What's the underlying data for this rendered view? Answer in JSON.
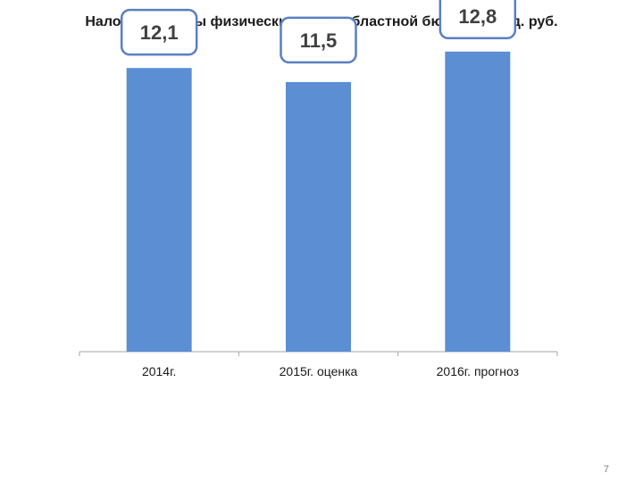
{
  "slide": {
    "page_number": "7"
  },
  "chart_data": {
    "type": "bar",
    "title": "Налог на доходы физических лиц в областной бюджет, млрд. руб.",
    "categories": [
      "2014г.",
      "2015г. оценка",
      "2016г. прогноз"
    ],
    "values": [
      12.1,
      11.5,
      12.8
    ],
    "data_labels": [
      "12,1",
      "11,5",
      "12,8"
    ],
    "ylim": [
      0,
      15
    ],
    "grid": false,
    "legend": "none",
    "colors": {
      "bar": "#5B8ED3",
      "label_border": "#5A7FC3",
      "label_text": "#404040"
    }
  }
}
